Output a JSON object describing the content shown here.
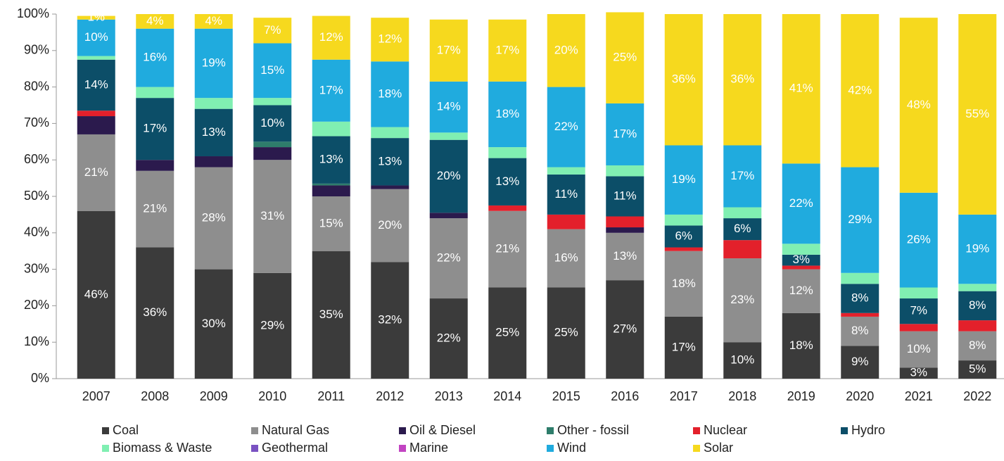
{
  "chart_data": {
    "type": "stacked_bar",
    "categories": [
      "2007",
      "2008",
      "2009",
      "2010",
      "2011",
      "2012",
      "2013",
      "2014",
      "2015",
      "2016",
      "2017",
      "2018",
      "2019",
      "2020",
      "2021",
      "2022"
    ],
    "ylim": [
      0,
      100
    ],
    "yticks": [
      {
        "value": 0,
        "label": "0%"
      },
      {
        "value": 10,
        "label": "10%"
      },
      {
        "value": 20,
        "label": "20%"
      },
      {
        "value": 30,
        "label": "30%"
      },
      {
        "value": 40,
        "label": "40%"
      },
      {
        "value": 50,
        "label": "50%"
      },
      {
        "value": 60,
        "label": "60%"
      },
      {
        "value": 70,
        "label": "70%"
      },
      {
        "value": 80,
        "label": "80%"
      },
      {
        "value": 90,
        "label": "90%"
      },
      {
        "value": 100,
        "label": "100%"
      }
    ],
    "legend": "bottom",
    "series": [
      {
        "name": "Coal",
        "color": "#3b3b3b",
        "values": [
          46,
          36,
          30,
          29,
          35,
          32,
          22,
          25,
          25,
          27,
          17,
          10,
          18,
          9,
          3,
          5
        ],
        "value_labels": [
          "46%",
          "36%",
          "30%",
          "29%",
          "35%",
          "32%",
          "22%",
          "25%",
          "25%",
          "27%",
          "17%",
          "10%",
          "18%",
          "9%",
          "3%",
          "5%"
        ]
      },
      {
        "name": "Natural Gas",
        "color": "#8e8e8e",
        "values": [
          21,
          21,
          28,
          31,
          15,
          20,
          22,
          21,
          16,
          13,
          18,
          23,
          12,
          8,
          10,
          8
        ],
        "value_labels": [
          "21%",
          "21%",
          "28%",
          "31%",
          "15%",
          "20%",
          "22%",
          "21%",
          "16%",
          "13%",
          "18%",
          "23%",
          "12%",
          "8%",
          "10%",
          "8%"
        ]
      },
      {
        "name": "Oil & Diesel",
        "color": "#2b1a4d",
        "values": [
          5,
          3,
          3,
          3.5,
          3,
          1,
          1.5,
          0,
          0,
          1.5,
          0,
          0,
          0,
          0,
          0,
          0
        ],
        "value_labels": [
          null,
          null,
          null,
          null,
          null,
          null,
          null,
          null,
          null,
          null,
          null,
          null,
          null,
          null,
          null,
          null
        ]
      },
      {
        "name": "Other - fossil",
        "color": "#2e7d6b",
        "values": [
          0,
          0,
          0,
          1.5,
          0.5,
          0,
          0,
          0,
          0,
          0,
          0,
          0,
          0,
          0,
          0,
          0
        ],
        "value_labels": [
          null,
          null,
          null,
          null,
          null,
          null,
          null,
          null,
          null,
          null,
          null,
          null,
          null,
          null,
          null,
          null
        ]
      },
      {
        "name": "Nuclear",
        "color": "#e3202b",
        "values": [
          1.5,
          0,
          0,
          0,
          0,
          0,
          0,
          1.5,
          4,
          3,
          1,
          5,
          1,
          1,
          2,
          3
        ],
        "value_labels": [
          null,
          null,
          null,
          null,
          null,
          null,
          null,
          null,
          null,
          null,
          null,
          null,
          null,
          null,
          null,
          null
        ]
      },
      {
        "name": "Hydro",
        "color": "#0c4e68",
        "values": [
          14,
          17,
          13,
          10,
          13,
          13,
          20,
          13,
          11,
          11,
          6,
          6,
          3,
          8,
          7,
          8
        ],
        "value_labels": [
          "14%",
          "17%",
          "13%",
          "10%",
          "13%",
          "13%",
          "20%",
          "13%",
          "11%",
          "11%",
          "6%",
          "6%",
          "3%",
          "8%",
          "7%",
          "8%"
        ]
      },
      {
        "name": "Biomass & Waste",
        "color": "#80efb2",
        "values": [
          1,
          3,
          3,
          2,
          4,
          3,
          2,
          3,
          2,
          3,
          3,
          3,
          3,
          3,
          3,
          2
        ],
        "value_labels": [
          null,
          null,
          null,
          null,
          null,
          null,
          null,
          null,
          null,
          null,
          null,
          null,
          null,
          null,
          null,
          null
        ]
      },
      {
        "name": "Geothermal",
        "color": "#7a52c2",
        "values": [
          0,
          0,
          0,
          0,
          0,
          0,
          0,
          0,
          0,
          0,
          0,
          0,
          0,
          0,
          0,
          0
        ],
        "value_labels": [
          null,
          null,
          null,
          null,
          null,
          null,
          null,
          null,
          null,
          null,
          null,
          null,
          null,
          null,
          null,
          null
        ]
      },
      {
        "name": "Marine",
        "color": "#c244c2",
        "values": [
          0,
          0,
          0,
          0,
          0,
          0,
          0,
          0,
          0,
          0,
          0,
          0,
          0,
          0,
          0,
          0
        ],
        "value_labels": [
          null,
          null,
          null,
          null,
          null,
          null,
          null,
          null,
          null,
          null,
          null,
          null,
          null,
          null,
          null,
          null
        ]
      },
      {
        "name": "Wind",
        "color": "#20abde",
        "values": [
          10,
          16,
          19,
          15,
          17,
          18,
          14,
          18,
          22,
          17,
          19,
          17,
          22,
          29,
          26,
          19
        ],
        "value_labels": [
          "10%",
          "16%",
          "19%",
          "15%",
          "17%",
          "18%",
          "14%",
          "18%",
          "22%",
          "17%",
          "19%",
          "17%",
          "22%",
          "29%",
          "26%",
          "19%"
        ]
      },
      {
        "name": "Solar",
        "color": "#f6d91e",
        "values": [
          1,
          4,
          4,
          7,
          12,
          12,
          17,
          17,
          20,
          25,
          36,
          36,
          41,
          42,
          48,
          55
        ],
        "value_labels": [
          "1%",
          "4%",
          "4%",
          "7%",
          "12%",
          "12%",
          "17%",
          "17%",
          "20%",
          "25%",
          "36%",
          "36%",
          "41%",
          "42%",
          "48%",
          "55%"
        ]
      }
    ]
  }
}
